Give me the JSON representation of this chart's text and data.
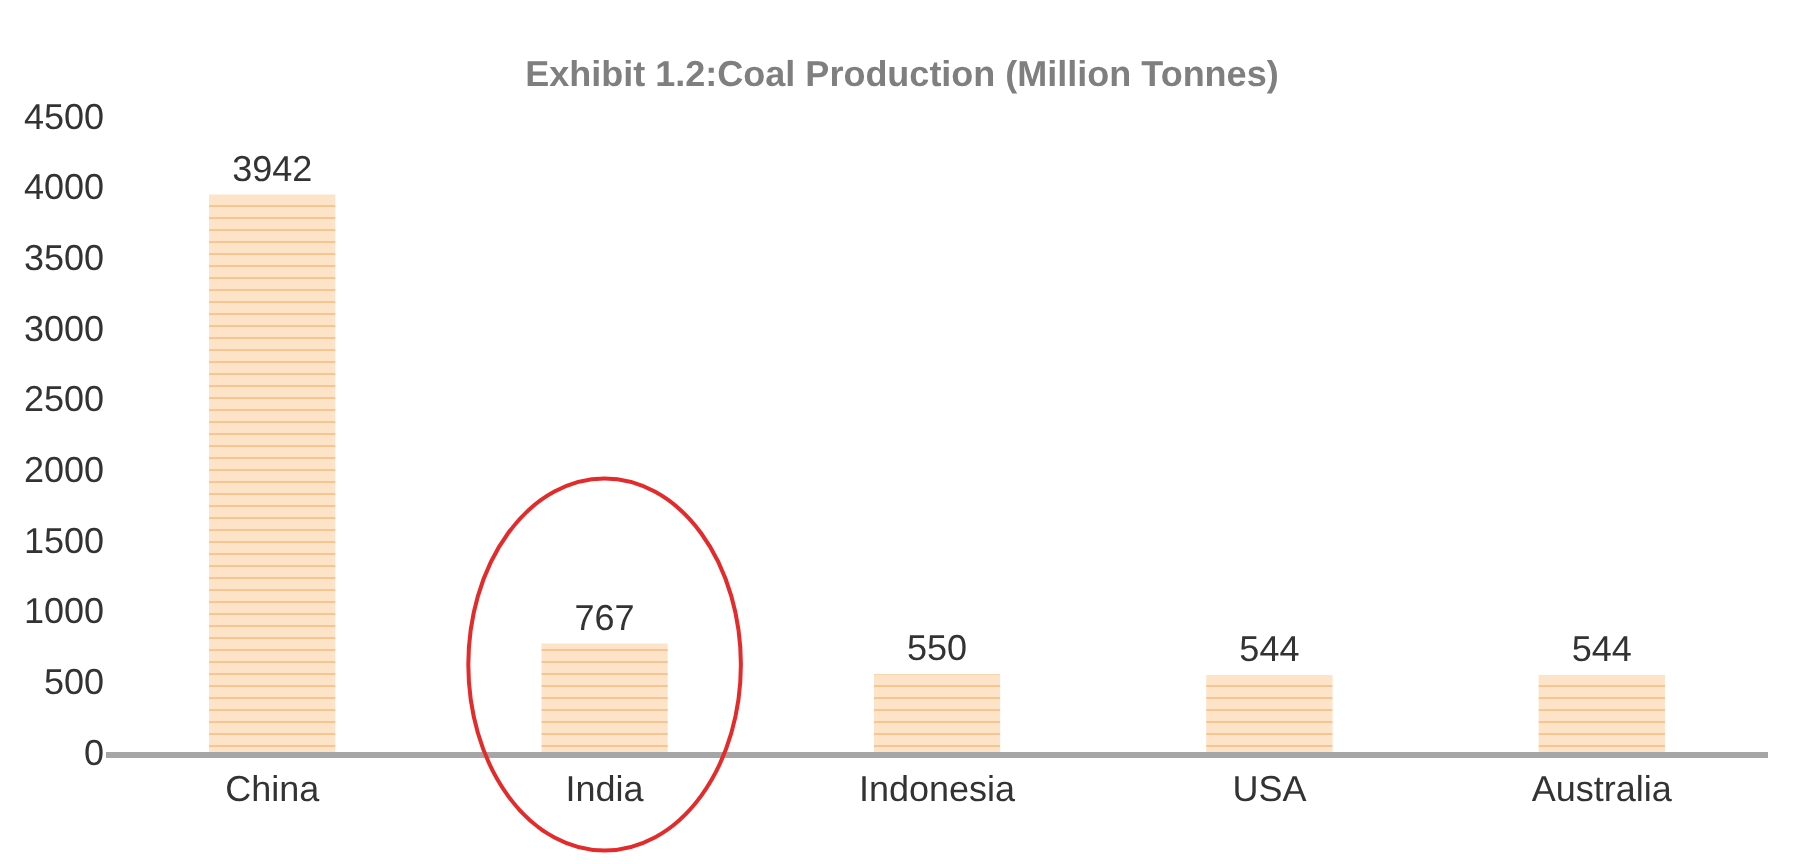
{
  "chart_data": {
    "type": "bar",
    "title": "Exhibit 1.2:Coal Production (Million Tonnes)",
    "categories": [
      "China",
      "India",
      "Indonesia",
      "USA",
      "Australia"
    ],
    "values": [
      3942,
      767,
      550,
      544,
      544
    ],
    "color": "#fde4c8",
    "ylim": [
      0,
      4500
    ],
    "yticks": [
      0,
      500,
      1000,
      1500,
      2000,
      2500,
      3000,
      3500,
      4000,
      4500
    ],
    "data_labels": true
  }
}
